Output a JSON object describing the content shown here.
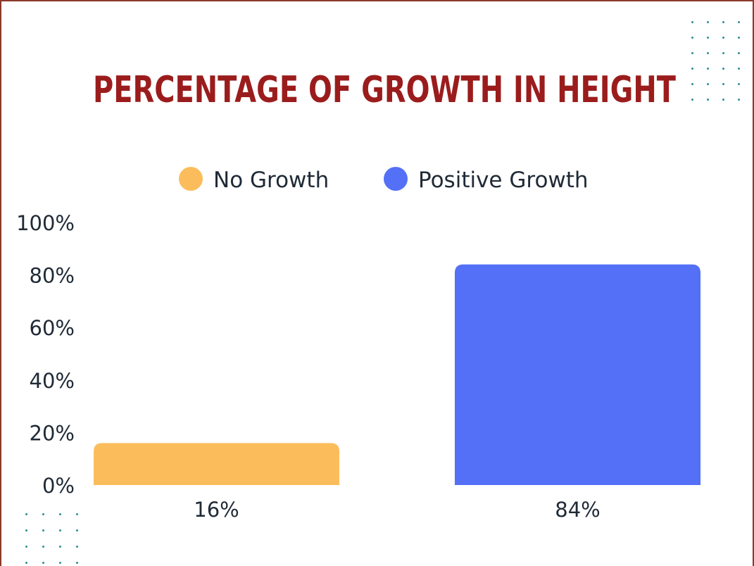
{
  "colors": {
    "title": "#9b1c1c",
    "text": "#1f2a36",
    "no_growth": "#fbbd5c",
    "positive_growth": "#5470f6",
    "border": "#8b3a2a",
    "dots": "#2a8f95"
  },
  "decor": {
    "top_right_dots": "dot-pattern-icon",
    "bottom_left_dots": "dot-pattern-icon"
  },
  "chart_data": {
    "type": "bar",
    "title": "PERCENTAGE OF GROWTH IN HEIGHT",
    "categories": [
      "No Growth",
      "Positive Growth"
    ],
    "values": [
      16,
      84
    ],
    "value_labels": [
      "16%",
      "84%"
    ],
    "legend": {
      "placement": "top-center",
      "entries": [
        "No Growth",
        "Positive Growth"
      ]
    },
    "y_ticks": [
      0,
      20,
      40,
      60,
      80,
      100
    ],
    "y_tick_labels": [
      "0%",
      "20%",
      "40%",
      "60%",
      "80%",
      "100%"
    ],
    "ylim": [
      0,
      100
    ],
    "grid": false,
    "xlabel": "",
    "ylabel": ""
  }
}
